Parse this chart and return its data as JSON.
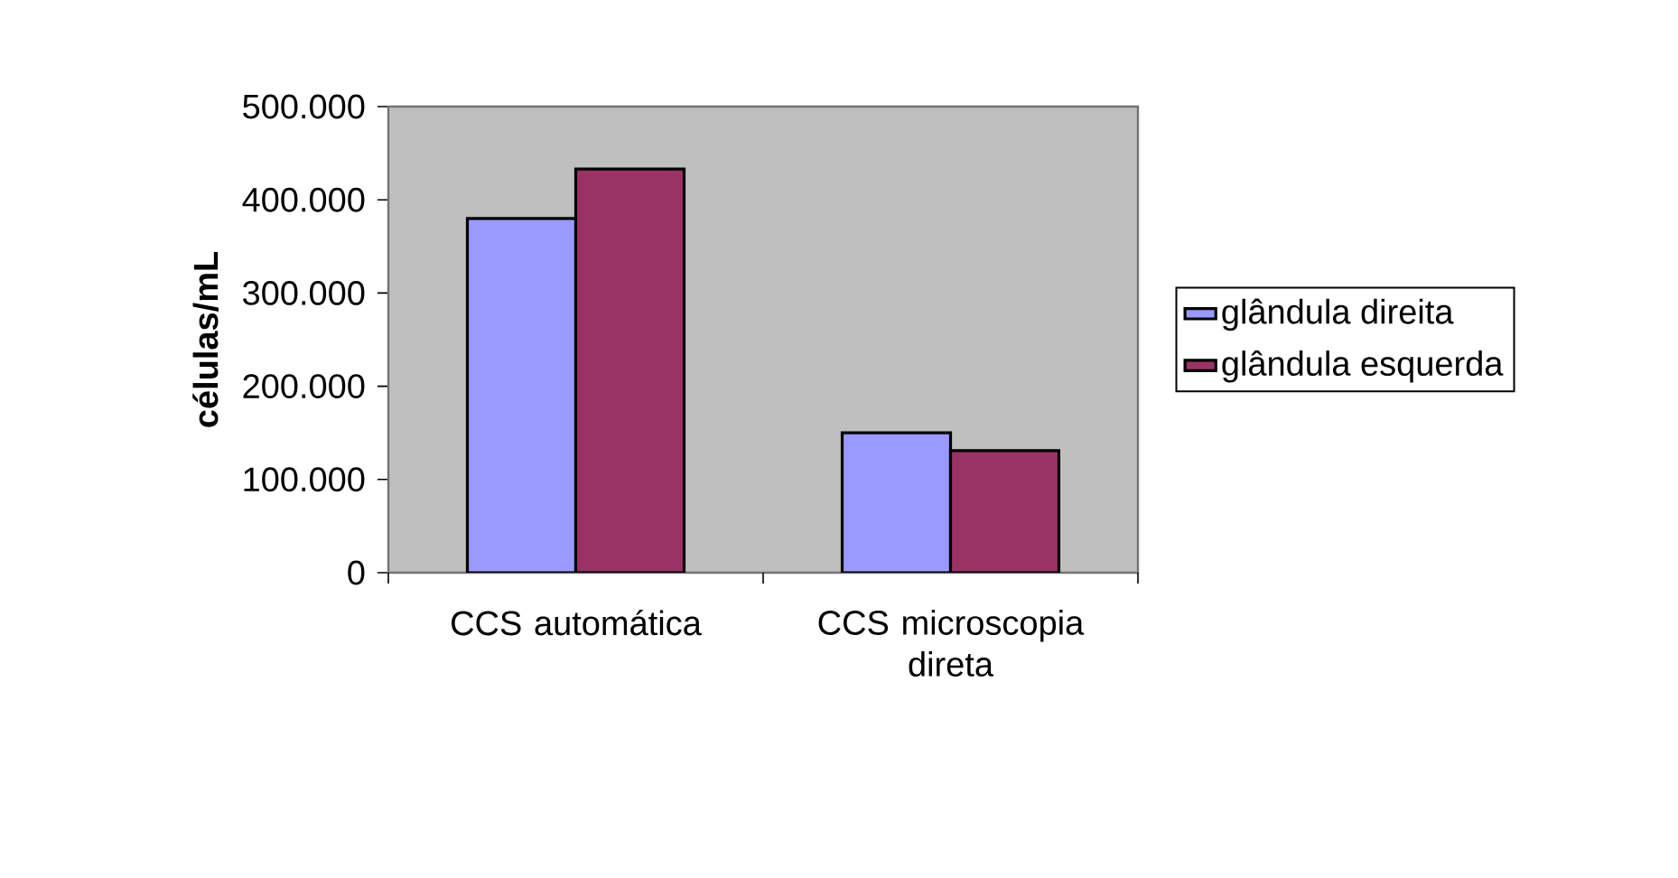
{
  "chart_data": {
    "type": "bar",
    "ylabel": "células/mL",
    "categories": [
      "CCS automática",
      "CCS microscopia direta"
    ],
    "series": [
      {
        "name": "glândula direita",
        "color": "#9999ff",
        "values": [
          380000,
          150000
        ]
      },
      {
        "name": "glândula esquerda",
        "color": "#993366",
        "values": [
          433000,
          131000
        ]
      }
    ],
    "ylim": [
      0,
      500000
    ],
    "yticks": [
      {
        "value": 0,
        "label": "0"
      },
      {
        "value": 100000,
        "label": "100.000"
      },
      {
        "value": 200000,
        "label": "200.000"
      },
      {
        "value": 300000,
        "label": "300.000"
      },
      {
        "value": 400000,
        "label": "400.000"
      },
      {
        "value": 500000,
        "label": "500.000"
      }
    ],
    "grid": false,
    "legend": "right"
  }
}
